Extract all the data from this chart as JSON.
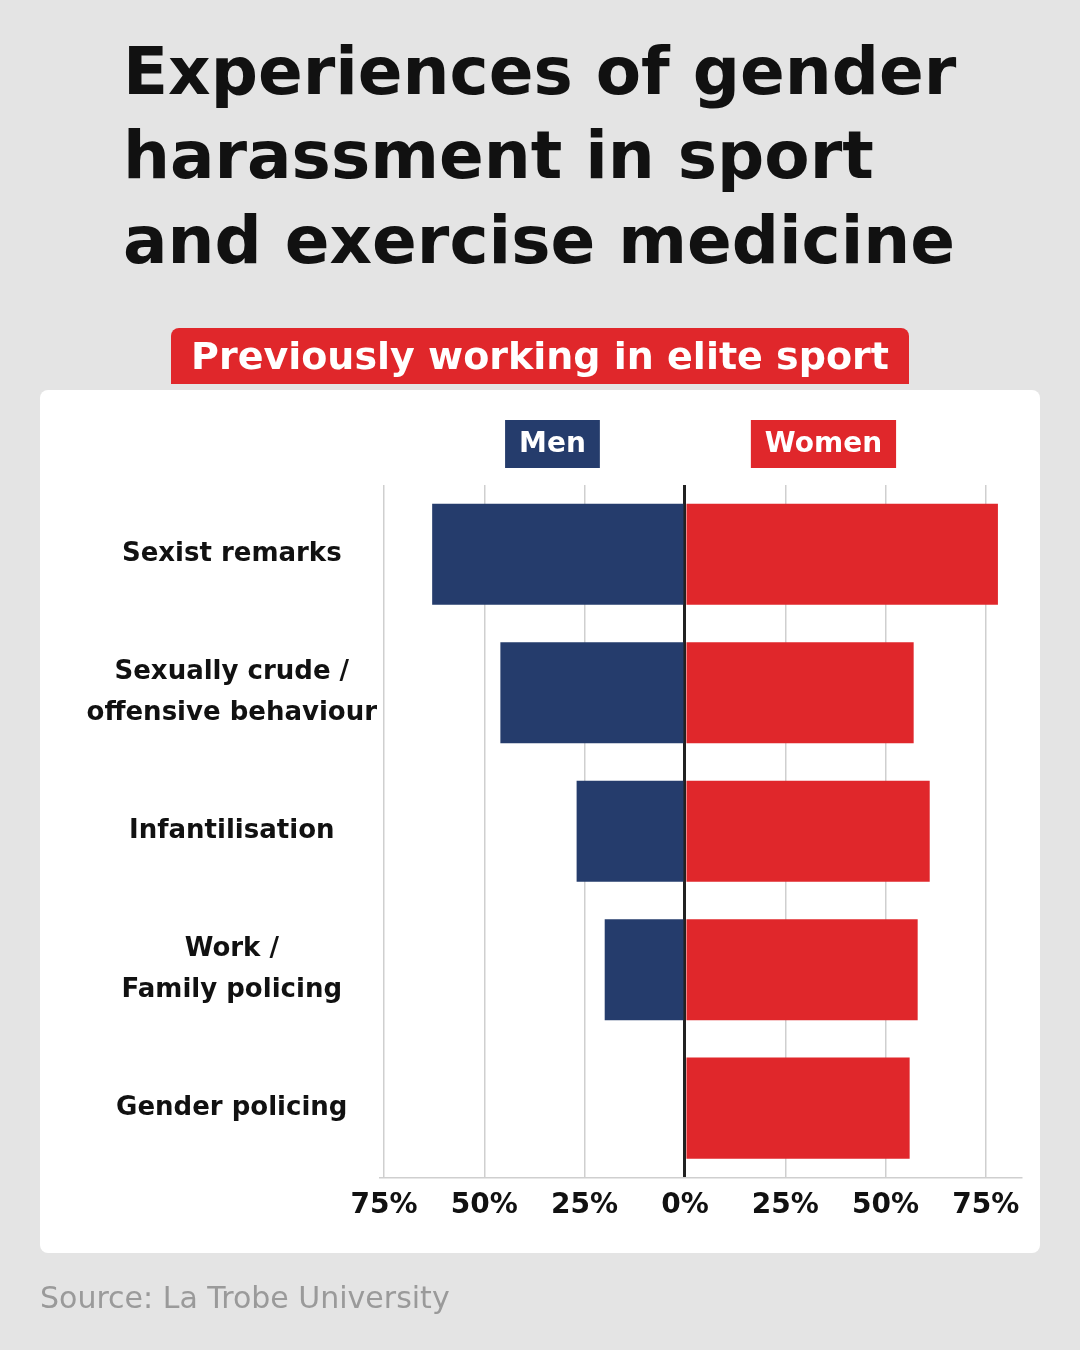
{
  "chart_data": {
    "type": "bar",
    "title": "Experiences of gender harassment in sport and exercise medicine",
    "subtitle": "Previously working in elite sport",
    "orientation": "horizontal",
    "stacked": true,
    "categories": [
      "Sexist remarks",
      "Sexually crude /\noffensive behaviour",
      "Infantilisation",
      "Work /\nFamily policing",
      "Gender policing"
    ],
    "series": [
      {
        "name": "Men",
        "color": "#253c6c",
        "values": [
          -63,
          -46,
          -27,
          -20,
          0
        ]
      },
      {
        "name": "Women",
        "color": "#e0272b",
        "values": [
          78,
          57,
          61,
          58,
          56
        ]
      }
    ],
    "xlim": [
      -76,
      84
    ],
    "xticks": [
      {
        "value": -75,
        "label": "75%"
      },
      {
        "value": -50,
        "label": "50%"
      },
      {
        "value": -25,
        "label": "25%"
      },
      {
        "value": 0,
        "label": "0%"
      },
      {
        "value": 25,
        "label": "25%"
      },
      {
        "value": 50,
        "label": "50%"
      },
      {
        "value": 75,
        "label": "75%"
      }
    ],
    "grid": "x",
    "legend": "top",
    "annotations": [
      "Source: La Trobe University"
    ]
  }
}
